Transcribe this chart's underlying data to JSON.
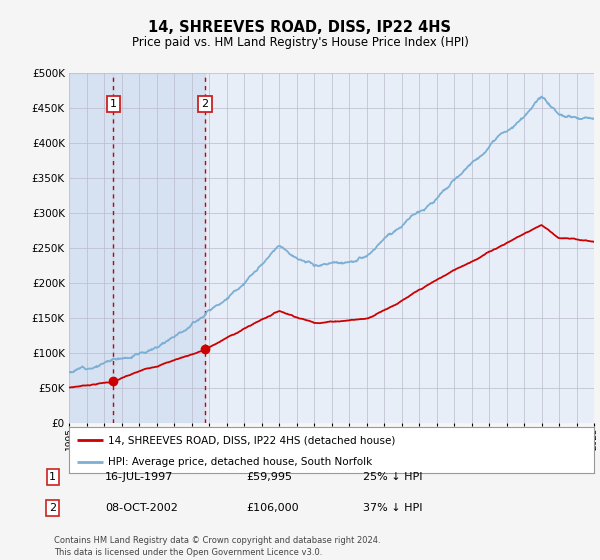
{
  "title": "14, SHREEVES ROAD, DISS, IP22 4HS",
  "subtitle": "Price paid vs. HM Land Registry's House Price Index (HPI)",
  "legend_label_red": "14, SHREEVES ROAD, DISS, IP22 4HS (detached house)",
  "legend_label_blue": "HPI: Average price, detached house, South Norfolk",
  "annotation1_date": "16-JUL-1997",
  "annotation1_price": "£59,995",
  "annotation1_pct": "25% ↓ HPI",
  "annotation1_year": 1997.54,
  "annotation1_value": 59995,
  "annotation2_date": "08-OCT-2002",
  "annotation2_price": "£106,000",
  "annotation2_pct": "37% ↓ HPI",
  "annotation2_year": 2002.77,
  "annotation2_value": 106000,
  "footer": "Contains HM Land Registry data © Crown copyright and database right 2024.\nThis data is licensed under the Open Government Licence v3.0.",
  "ylim": [
    0,
    500000
  ],
  "yticks": [
    0,
    50000,
    100000,
    150000,
    200000,
    250000,
    300000,
    350000,
    400000,
    450000,
    500000
  ],
  "background_color": "#e8eef8",
  "red_color": "#cc0000",
  "blue_color": "#7bafd4",
  "vline_color": "#cc0000",
  "shade_color": "#c8d8ee",
  "box_color": "#cc2222",
  "xlim_start": 1995,
  "xlim_end": 2025
}
